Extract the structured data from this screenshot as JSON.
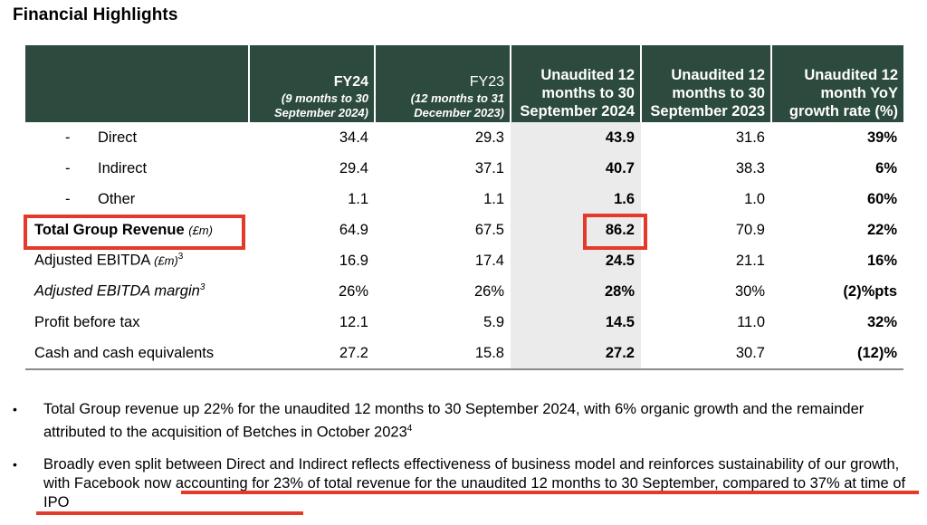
{
  "title": "Financial Highlights",
  "columns": [
    {
      "main": "FY24",
      "sub": "(9 months to 30 September 2024)"
    },
    {
      "main": "FY23",
      "sub": "(12 months to 31 December 2023)"
    },
    {
      "main": "Unaudited 12 months to 30 September 2024"
    },
    {
      "main": "Unaudited 12 months to 30 September 2023"
    },
    {
      "main": "Unaudited 12 month YoY growth rate (%)"
    }
  ],
  "rows": [
    {
      "dash": "-",
      "label": "Direct",
      "values": [
        "34.4",
        "29.3",
        "43.9",
        "31.6",
        "39%"
      ]
    },
    {
      "dash": "-",
      "label": "Indirect",
      "values": [
        "29.4",
        "37.1",
        "40.7",
        "38.3",
        "6%"
      ]
    },
    {
      "dash": "-",
      "label": "Other",
      "values": [
        "1.1",
        "1.1",
        "1.6",
        "1.0",
        "60%"
      ]
    },
    {
      "label": "Total Group Revenue",
      "unit": "(£m)",
      "values": [
        "64.9",
        "67.5",
        "86.2",
        "70.9",
        "22%"
      ]
    },
    {
      "label": "Adjusted EBITDA",
      "unit": "(£m)",
      "sup": "3",
      "values": [
        "16.9",
        "17.4",
        "24.5",
        "21.1",
        "16%"
      ]
    },
    {
      "label": "Adjusted EBITDA margin",
      "sup": "3",
      "values": [
        "26%",
        "26%",
        "28%",
        "30%",
        "(2)%pts"
      ]
    },
    {
      "label": "Profit before tax",
      "values": [
        "12.1",
        "5.9",
        "14.5",
        "11.0",
        "32%"
      ]
    },
    {
      "label": "Cash and cash equivalents",
      "values": [
        "27.2",
        "15.8",
        "27.2",
        "30.7",
        "(12)%"
      ]
    }
  ],
  "bullets": [
    {
      "text": "Total Group revenue up 22% for the unaudited 12 months to 30 September 2024, with 6% organic growth and the remainder attributed to the acquisition of Betches in October 2023",
      "sup": "4"
    },
    {
      "text": "Broadly even split between Direct and Indirect reflects effectiveness of business model and reinforces sustainability of our growth, with Facebook now accounting for 23% of total revenue for the unaudited 12 months to 30 September, compared to 37% at time of IPO"
    }
  ],
  "bullet_symbol": "•",
  "colors": {
    "header_bg": "#2c4a3e",
    "highlight": "#e43a2a",
    "shade": "#ebebeb"
  }
}
